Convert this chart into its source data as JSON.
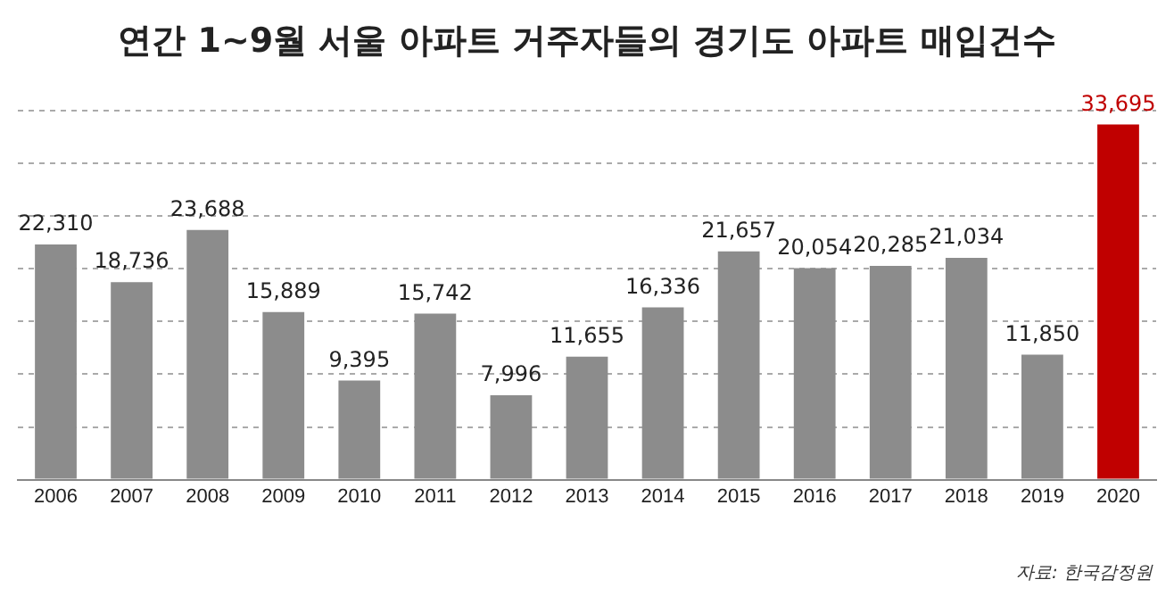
{
  "chart_data": {
    "type": "bar",
    "title": "연간 1~9월 서울 아파트 거주자들의 경기도 아파트 매입건수",
    "categories": [
      "2006",
      "2007",
      "2008",
      "2009",
      "2010",
      "2011",
      "2012",
      "2013",
      "2014",
      "2015",
      "2016",
      "2017",
      "2018",
      "2019",
      "2020"
    ],
    "values": [
      22310,
      18736,
      23688,
      15889,
      9395,
      15742,
      7996,
      11655,
      16336,
      21657,
      20054,
      20285,
      21034,
      11850,
      33695
    ],
    "color": "#8c8c8c",
    "colors": [
      "#8c8c8c",
      "#8c8c8c",
      "#8c8c8c",
      "#8c8c8c",
      "#8c8c8c",
      "#8c8c8c",
      "#8c8c8c",
      "#8c8c8c",
      "#8c8c8c",
      "#8c8c8c",
      "#8c8c8c",
      "#8c8c8c",
      "#8c8c8c",
      "#8c8c8c",
      "#c00000"
    ],
    "value_labels": [
      "22,310",
      "18,736",
      "23,688",
      "15,889",
      "9,395",
      "15,742",
      "7,996",
      "11,655",
      "16,336",
      "21,657",
      "20,054",
      "20,285",
      "21,034",
      "11,850",
      "33,695"
    ],
    "tick_labels": "x",
    "grid": "y",
    "legend": false,
    "annotations": [
      "자료: 한국감정원"
    ]
  }
}
